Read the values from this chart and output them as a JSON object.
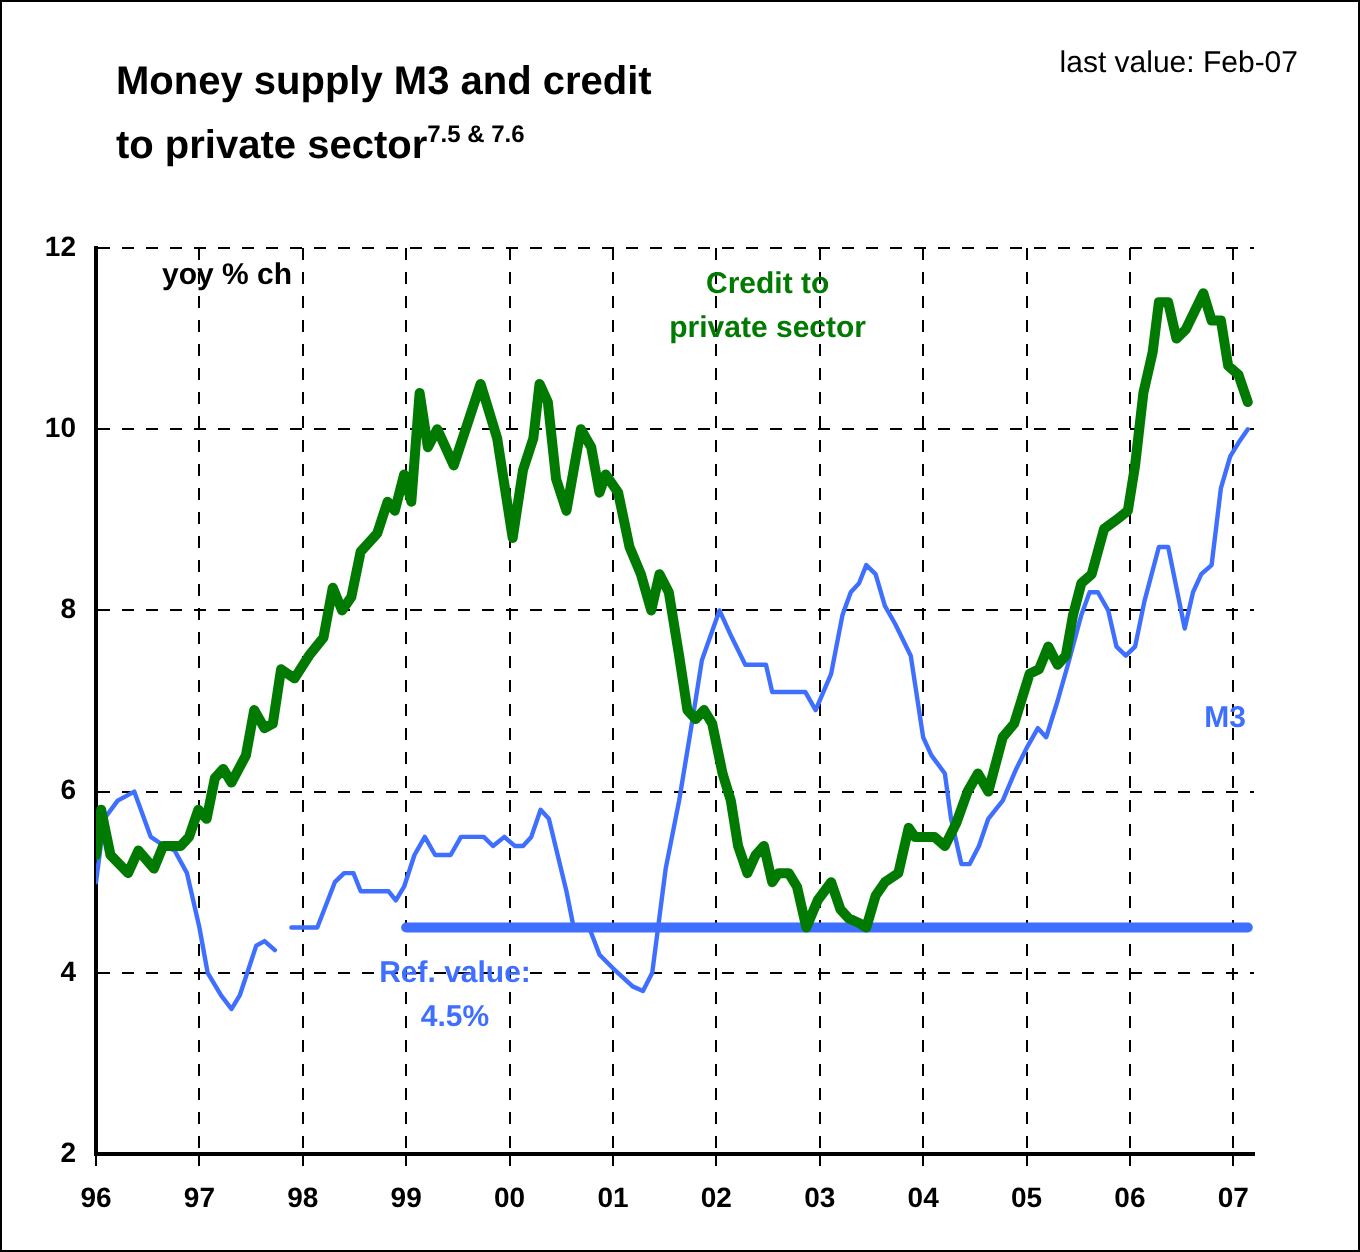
{
  "chart_data": {
    "type": "line",
    "title": "Money supply M3 and credit to private sector$^{7.5 & 7.6}$",
    "subtitle": "last value: Feb-07",
    "ylabel": "yoy % ch",
    "xlim": [
      1996,
      2007.2
    ],
    "xticks": [
      {
        "value": 1996,
        "label": "96"
      },
      {
        "value": 1997,
        "label": "97"
      },
      {
        "value": 1998,
        "label": "98"
      },
      {
        "value": 1999,
        "label": "99"
      },
      {
        "value": 2000,
        "label": "00"
      },
      {
        "value": 2001,
        "label": "01"
      },
      {
        "value": 2002,
        "label": "02"
      },
      {
        "value": 2003,
        "label": "03"
      },
      {
        "value": 2004,
        "label": "04"
      },
      {
        "value": 2005,
        "label": "05"
      },
      {
        "value": 2006,
        "label": "06"
      },
      {
        "value": 2007,
        "label": "07"
      }
    ],
    "ylim": [
      2,
      12
    ],
    "yticks": [
      2,
      4,
      6,
      8,
      10,
      12
    ],
    "grid": true,
    "legend": false,
    "marker": "none",
    "line_style": "solid",
    "series": [
      {
        "name": "Credit to private sector",
        "color": "#007a00",
        "x": [
          1996.0,
          1996.05,
          1996.14,
          1996.31,
          1996.41,
          1996.56,
          1996.65,
          1996.82,
          1996.9,
          1996.99,
          1997.07,
          1997.15,
          1997.23,
          1997.31,
          1997.45,
          1997.53,
          1997.63,
          1997.71,
          1997.79,
          1997.92,
          1998.06,
          1998.2,
          1998.29,
          1998.38,
          1998.47,
          1998.56,
          1998.72,
          1998.82,
          1998.89,
          1998.98,
          1999.05,
          1999.13,
          1999.21,
          1999.3,
          1999.46,
          1999.72,
          1999.88,
          2000.03,
          2000.13,
          2000.23,
          2000.29,
          2000.37,
          2000.45,
          2000.55,
          2000.69,
          2000.79,
          2000.87,
          2000.93,
          2001.05,
          2001.16,
          2001.27,
          2001.37,
          2001.45,
          2001.54,
          2001.64,
          2001.72,
          2001.8,
          2001.88,
          2001.96,
          2002.06,
          2002.14,
          2002.21,
          2002.3,
          2002.38,
          2002.46,
          2002.54,
          2002.6,
          2002.7,
          2002.78,
          2002.87,
          2002.98,
          2003.11,
          2003.2,
          2003.28,
          2003.38,
          2003.45,
          2003.54,
          2003.63,
          2003.76,
          2003.86,
          2003.92,
          2004.02,
          2004.11,
          2004.21,
          2004.32,
          2004.43,
          2004.53,
          2004.63,
          2004.77,
          2004.88,
          2005.03,
          2005.12,
          2005.21,
          2005.3,
          2005.38,
          2005.45,
          2005.53,
          2005.63,
          2005.75,
          2005.87,
          2005.98,
          2006.05,
          2006.13,
          2006.22,
          2006.28,
          2006.37,
          2006.45,
          2006.54,
          2006.71,
          2006.79,
          2006.88,
          2006.95,
          2007.05,
          2007.14
        ],
        "values": [
          5.3,
          5.8,
          5.3,
          5.1,
          5.35,
          5.15,
          5.4,
          5.4,
          5.5,
          5.8,
          5.7,
          6.15,
          6.25,
          6.1,
          6.4,
          6.9,
          6.7,
          6.75,
          7.35,
          7.25,
          7.5,
          7.7,
          8.25,
          8.0,
          8.15,
          8.65,
          8.85,
          9.2,
          9.1,
          9.5,
          9.2,
          10.4,
          9.8,
          10.0,
          9.6,
          10.5,
          9.9,
          8.8,
          9.55,
          9.9,
          10.5,
          10.3,
          9.45,
          9.1,
          10.0,
          9.8,
          9.3,
          9.5,
          9.3,
          8.7,
          8.4,
          8.0,
          8.4,
          8.2,
          7.5,
          6.9,
          6.8,
          6.9,
          6.75,
          6.2,
          5.9,
          5.4,
          5.1,
          5.3,
          5.4,
          5.0,
          5.1,
          5.1,
          4.95,
          4.5,
          4.8,
          5.0,
          4.7,
          4.6,
          4.55,
          4.5,
          4.85,
          5.0,
          5.1,
          5.6,
          5.5,
          5.5,
          5.5,
          5.4,
          5.65,
          6.0,
          6.2,
          6.0,
          6.6,
          6.75,
          7.3,
          7.35,
          7.6,
          7.4,
          7.5,
          7.95,
          8.3,
          8.4,
          8.9,
          9.0,
          9.1,
          9.6,
          10.4,
          10.85,
          11.4,
          11.4,
          11.0,
          11.1,
          11.5,
          11.2,
          11.2,
          10.7,
          10.6,
          10.3
        ]
      },
      {
        "name": "M3",
        "color": "#3f6fff",
        "x": [
          1996.0,
          1996.08,
          1996.21,
          1996.37,
          1996.53,
          1996.66,
          1996.76,
          1996.88,
          1997.0,
          1997.08,
          1997.21,
          1997.31,
          1997.39,
          1997.55,
          1997.63,
          1997.73,
          1997.81,
          1997.89,
          1998.14,
          1998.31,
          1998.4,
          1998.49,
          1998.56,
          1998.83,
          1998.9,
          1998.98,
          1999.08,
          1999.18,
          1999.28,
          1999.43,
          1999.53,
          1999.75,
          1999.84,
          1999.95,
          2000.05,
          2000.13,
          2000.21,
          2000.3,
          2000.38,
          2000.55,
          2000.62,
          2000.77,
          2000.87,
          2001.0,
          2001.19,
          2001.29,
          2001.38,
          2001.51,
          2001.64,
          2001.77,
          2001.86,
          2002.03,
          2002.15,
          2002.28,
          2002.48,
          2002.54,
          2002.86,
          2002.96,
          2003.11,
          2003.22,
          2003.3,
          2003.38,
          2003.45,
          2003.54,
          2003.63,
          2003.73,
          2003.88,
          2004.0,
          2004.08,
          2004.21,
          2004.27,
          2004.37,
          2004.45,
          2004.54,
          2004.63,
          2004.77,
          2004.9,
          2005.01,
          2005.11,
          2005.19,
          2005.3,
          2005.4,
          2005.53,
          2005.61,
          2005.69,
          2005.79,
          2005.87,
          2005.96,
          2006.05,
          2006.14,
          2006.28,
          2006.37,
          2006.45,
          2006.53,
          2006.61,
          2006.69,
          2006.79,
          2006.88,
          2006.97,
          2007.05,
          2007.14
        ],
        "values": [
          5.0,
          5.7,
          5.9,
          6.0,
          5.5,
          5.4,
          5.35,
          5.1,
          4.5,
          4.0,
          3.75,
          3.6,
          3.75,
          4.3,
          4.35,
          4.25,
          null,
          4.5,
          4.5,
          5.0,
          5.1,
          5.1,
          4.9,
          4.9,
          4.8,
          4.95,
          5.3,
          5.5,
          5.3,
          5.3,
          5.5,
          5.5,
          5.4,
          5.5,
          5.4,
          5.4,
          5.5,
          5.8,
          5.7,
          4.9,
          4.5,
          4.5,
          4.2,
          4.05,
          3.85,
          3.8,
          4.0,
          5.15,
          5.9,
          6.8,
          7.45,
          8.0,
          7.7,
          7.4,
          7.4,
          7.1,
          7.1,
          6.9,
          7.3,
          7.95,
          8.2,
          8.3,
          8.5,
          8.4,
          8.05,
          7.85,
          7.5,
          6.6,
          6.4,
          6.2,
          5.7,
          5.2,
          5.2,
          5.4,
          5.7,
          5.9,
          6.25,
          6.5,
          6.7,
          6.6,
          7.0,
          7.4,
          7.95,
          8.2,
          8.2,
          8.0,
          7.6,
          7.5,
          7.6,
          8.1,
          8.7,
          8.7,
          8.25,
          7.8,
          8.2,
          8.4,
          8.5,
          9.35,
          9.7,
          9.85,
          10.0
        ]
      },
      {
        "name": "Ref. value: 4.5%",
        "color": "#3f6fff",
        "x": [
          1999,
          2007.14
        ],
        "values": [
          4.5,
          4.5
        ]
      }
    ]
  }
}
